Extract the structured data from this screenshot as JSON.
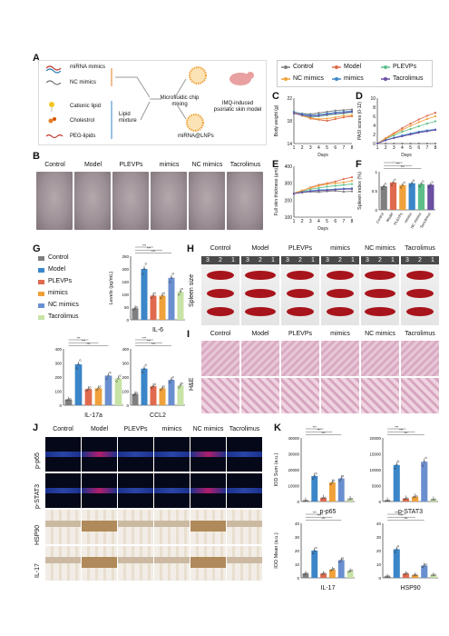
{
  "panel_letters": {
    "A": "A",
    "B": "B",
    "C": "C",
    "D": "D",
    "E": "E",
    "F": "F",
    "G": "G",
    "H": "H",
    "I": "I",
    "J": "J",
    "K": "K"
  },
  "schematic": {
    "left_items": [
      "miRNA mimics",
      "NC mimics",
      "Cationic lipid",
      "Cholestrol",
      "PEG-lipids"
    ],
    "lipid_mixture": "Lipid mixture",
    "microfluidic": "Microfluidic chip mixing",
    "product": "miRNA@LNPs",
    "model": "IMQ-induced psoriatic skin model"
  },
  "legend": {
    "items": [
      {
        "name": "Control",
        "color": "#7f7f7f"
      },
      {
        "name": "Model",
        "color": "#e06a4e"
      },
      {
        "name": "PLEVPs",
        "color": "#5cbf8a"
      },
      {
        "name": "NC mimics",
        "color": "#f0a13a"
      },
      {
        "name": "mimics",
        "color": "#3a86c8"
      },
      {
        "name": "Tacrolimus",
        "color": "#6a4fa3"
      }
    ]
  },
  "groups": [
    "Control",
    "Model",
    "PLEVPs",
    "mimics",
    "NC mimics",
    "Tacrolimus"
  ],
  "g_legend": [
    "Control",
    "Model",
    "PLEVPs",
    "mimics",
    "NC mimics",
    "Tacrolimus"
  ],
  "spleen_label": "Spleen size",
  "ruler_marks": [
    "3",
    "2",
    "1"
  ],
  "he_label": "H&E",
  "j_rows": [
    "p-p65",
    "p-STAT3",
    "HSP90",
    "IL-17"
  ],
  "chart_data": [
    {
      "id": "C",
      "type": "line",
      "xlabel": "Days",
      "ylabel": "Body weight (g)",
      "x": [
        1,
        2,
        3,
        4,
        5,
        6,
        7,
        8
      ],
      "ylim": [
        14,
        22
      ],
      "yticks": [
        14,
        18,
        22
      ],
      "series": [
        {
          "name": "Control",
          "color": "#7f7f7f",
          "values": [
            19.5,
            19.3,
            19.2,
            19.4,
            19.6,
            19.8,
            19.9,
            20.0
          ]
        },
        {
          "name": "Model",
          "color": "#e06a4e",
          "values": [
            19.6,
            19.0,
            18.4,
            18.2,
            18.0,
            18.3,
            18.6,
            18.8
          ]
        },
        {
          "name": "PLEVPs",
          "color": "#5cbf8a",
          "values": [
            19.4,
            19.0,
            18.6,
            18.8,
            19.0,
            19.2,
            19.3,
            19.5
          ]
        },
        {
          "name": "NC mimics",
          "color": "#f0a13a",
          "values": [
            19.5,
            18.9,
            18.5,
            18.3,
            18.4,
            18.6,
            18.9,
            19.0
          ]
        },
        {
          "name": "mimics",
          "color": "#3a86c8",
          "values": [
            19.6,
            19.2,
            19.0,
            19.1,
            19.3,
            19.5,
            19.6,
            19.7
          ]
        },
        {
          "name": "Tacrolimus",
          "color": "#6a4fa3",
          "values": [
            19.3,
            19.0,
            18.8,
            18.9,
            19.1,
            19.3,
            19.4,
            19.6
          ]
        }
      ]
    },
    {
      "id": "D",
      "type": "line",
      "xlabel": "Days",
      "ylabel": "PASI scores (0-12)",
      "x": [
        1,
        2,
        3,
        4,
        5,
        6,
        7,
        8
      ],
      "ylim": [
        0,
        10
      ],
      "yticks": [
        0,
        2,
        4,
        6,
        8,
        10
      ],
      "series": [
        {
          "name": "Control",
          "color": "#7f7f7f",
          "values": [
            0,
            0,
            0,
            0,
            0,
            0,
            0,
            0
          ]
        },
        {
          "name": "Model",
          "color": "#e06a4e",
          "values": [
            0,
            1.2,
            2.3,
            3.4,
            4.4,
            5.3,
            6.1,
            6.8
          ]
        },
        {
          "name": "PLEVPs",
          "color": "#5cbf8a",
          "values": [
            0,
            1.0,
            1.8,
            2.6,
            3.2,
            3.8,
            4.4,
            4.9
          ]
        },
        {
          "name": "NC mimics",
          "color": "#f0a13a",
          "values": [
            0,
            1.1,
            2.1,
            3.0,
            3.9,
            4.7,
            5.4,
            6.0
          ]
        },
        {
          "name": "mimics",
          "color": "#3a86c8",
          "values": [
            0,
            0.8,
            1.3,
            1.8,
            2.2,
            2.6,
            2.9,
            3.1
          ]
        },
        {
          "name": "Tacrolimus",
          "color": "#6a4fa3",
          "values": [
            0,
            0.7,
            1.2,
            1.6,
            2.0,
            2.4,
            2.7,
            3.0
          ]
        }
      ]
    },
    {
      "id": "E",
      "type": "line",
      "xlabel": "Days",
      "ylabel": "Full skin thickness (μm)",
      "x": [
        1,
        2,
        3,
        4,
        5,
        6,
        7,
        8
      ],
      "ylim": [
        100,
        400
      ],
      "yticks": [
        100,
        200,
        300,
        400
      ],
      "series": [
        {
          "name": "Control",
          "color": "#7f7f7f",
          "values": [
            240,
            245,
            250,
            248,
            252,
            255,
            250,
            252
          ]
        },
        {
          "name": "Model",
          "color": "#e06a4e",
          "values": [
            240,
            255,
            275,
            290,
            300,
            310,
            325,
            335
          ]
        },
        {
          "name": "PLEVPs",
          "color": "#5cbf8a",
          "values": [
            238,
            250,
            265,
            272,
            280,
            285,
            290,
            295
          ]
        },
        {
          "name": "NC mimics",
          "color": "#f0a13a",
          "values": [
            242,
            258,
            272,
            285,
            295,
            300,
            305,
            315
          ]
        },
        {
          "name": "mimics",
          "color": "#3a86c8",
          "values": [
            240,
            248,
            255,
            260,
            262,
            265,
            268,
            270
          ]
        },
        {
          "name": "Tacrolimus",
          "color": "#6a4fa3",
          "values": [
            238,
            246,
            252,
            256,
            258,
            262,
            265,
            266
          ]
        }
      ]
    },
    {
      "id": "F",
      "type": "bar",
      "ylabel": "Spleen index (%)",
      "categories": [
        "Control",
        "Model",
        "PLEVPs",
        "mimics",
        "NC mimics",
        "Tacrolimus"
      ],
      "values": [
        0.62,
        0.72,
        0.65,
        0.7,
        0.68,
        0.66
      ],
      "ylim": [
        0,
        1.0
      ],
      "yticks": [
        0.0,
        0.5,
        1.0
      ]
    },
    {
      "id": "G1",
      "type": "bar",
      "title": "IL-6",
      "ylabel": "Levels (pg/mL)",
      "ylim": [
        0,
        250
      ],
      "yticks": [
        0,
        50,
        100,
        150,
        200,
        250
      ],
      "values": [
        45,
        200,
        95,
        95,
        165,
        110
      ]
    },
    {
      "id": "G2",
      "type": "bar",
      "title": "IL-17a",
      "ylim": [
        0,
        400
      ],
      "yticks": [
        0,
        100,
        200,
        300,
        400
      ],
      "values": [
        40,
        290,
        115,
        120,
        210,
        190
      ]
    },
    {
      "id": "G3",
      "type": "bar",
      "title": "CCL2",
      "ylim": [
        0,
        400
      ],
      "yticks": [
        0,
        100,
        200,
        300,
        400
      ],
      "values": [
        80,
        260,
        135,
        120,
        180,
        140
      ]
    },
    {
      "id": "K1",
      "type": "bar",
      "title": "p-p65",
      "ylabel": "IOD Sum (a.u.)",
      "ylim": [
        0,
        40000
      ],
      "yticks": [
        0,
        10000,
        20000,
        30000,
        40000
      ],
      "values": [
        500,
        16000,
        2200,
        12000,
        14500,
        1500
      ]
    },
    {
      "id": "K2",
      "type": "bar",
      "title": "p-STAT3",
      "ylim": [
        0,
        20000
      ],
      "yticks": [
        0,
        5000,
        10000,
        15000,
        20000
      ],
      "values": [
        300,
        11500,
        900,
        1500,
        12500,
        600
      ]
    },
    {
      "id": "K3",
      "type": "bar",
      "title": "IL-17",
      "ylabel": "IOD Mean (a.u.)",
      "ylim": [
        0,
        40
      ],
      "yticks": [
        0,
        10,
        20,
        30,
        40
      ],
      "values": [
        3,
        20,
        3,
        6,
        13,
        5
      ]
    },
    {
      "id": "K4",
      "type": "bar",
      "title": "HSP90",
      "ylim": [
        0,
        40
      ],
      "yticks": [
        0,
        10,
        20,
        30,
        40
      ],
      "values": [
        1,
        21,
        3,
        2,
        9,
        2
      ]
    }
  ],
  "sig": [
    "***",
    "***",
    "***",
    "***",
    "**",
    "ns",
    "*"
  ],
  "bar_colors": [
    "#7f7f7f",
    "#3a86c8",
    "#e06a4e",
    "#f0a13a",
    "#6a8fd0",
    "#c7e3a5"
  ]
}
